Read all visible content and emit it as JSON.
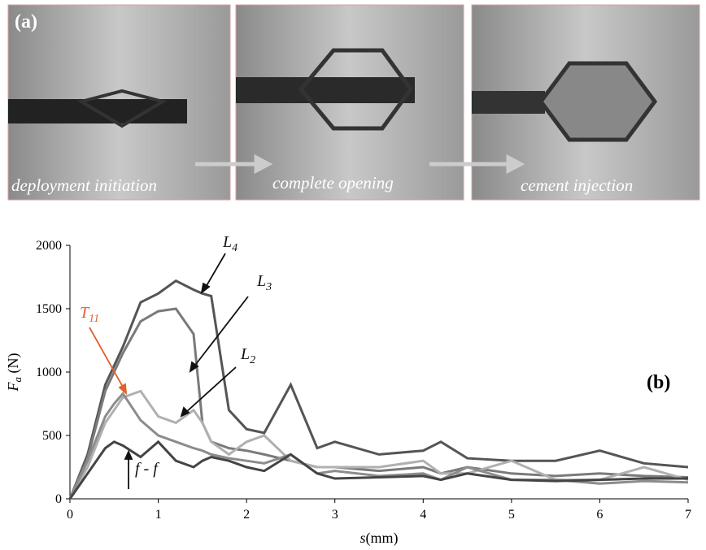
{
  "panel_a": {
    "label": "(a)",
    "captions": [
      "deployment initiation",
      "complete opening",
      "cement injection"
    ]
  },
  "chart_data": {
    "type": "line",
    "panel_label": "(b)",
    "xlabel": {
      "text": "s",
      "unit": "(mm)"
    },
    "ylabel": {
      "text": "F",
      "sub": "a",
      "unit": " (N)"
    },
    "x": [
      0,
      0.2,
      0.4,
      0.5,
      0.6,
      0.8,
      1.0,
      1.2,
      1.4,
      1.5,
      1.6,
      1.8,
      2.0,
      2.2,
      2.5,
      2.8,
      3.0,
      3.5,
      4.0,
      4.2,
      4.5,
      5.0,
      5.5,
      6.0,
      6.5,
      7.0
    ],
    "series": [
      {
        "color": "#555555",
        "values": [
          0,
          350,
          900,
          1050,
          1200,
          1550,
          1620,
          1720,
          1650,
          1620,
          1600,
          700,
          550,
          520,
          900,
          400,
          450,
          350,
          380,
          450,
          320,
          300,
          300,
          380,
          280,
          250
        ]
      },
      {
        "color": "#7a7a7a",
        "values": [
          0,
          320,
          850,
          1000,
          1150,
          1400,
          1480,
          1500,
          1300,
          600,
          450,
          400,
          380,
          350,
          300,
          250,
          250,
          220,
          250,
          200,
          250,
          200,
          180,
          200,
          180,
          170
        ]
      },
      {
        "color": "#b0b0b0",
        "values": [
          0,
          250,
          600,
          700,
          800,
          850,
          650,
          600,
          700,
          600,
          450,
          350,
          450,
          500,
          300,
          250,
          250,
          250,
          300,
          200,
          200,
          300,
          150,
          150,
          250,
          150
        ]
      },
      {
        "color": "#8c8c8c",
        "values": [
          0,
          300,
          650,
          750,
          830,
          620,
          500,
          450,
          400,
          380,
          350,
          320,
          300,
          280,
          350,
          200,
          220,
          180,
          200,
          150,
          250,
          150,
          150,
          120,
          140,
          130
        ]
      },
      {
        "color": "#444444",
        "values": [
          0,
          200,
          400,
          450,
          420,
          330,
          450,
          300,
          250,
          300,
          330,
          300,
          250,
          220,
          350,
          200,
          160,
          170,
          180,
          150,
          200,
          150,
          140,
          150,
          160,
          160
        ]
      }
    ],
    "annotations": [
      {
        "text": "L",
        "sub": "4"
      },
      {
        "text": "L",
        "sub": "3"
      },
      {
        "text": "L",
        "sub": "2"
      },
      {
        "text": "T",
        "sub": "11",
        "color": "#e0622a"
      },
      {
        "text": "f - f"
      }
    ],
    "xlim": [
      0,
      7
    ],
    "xticks": [
      0,
      1,
      2,
      3,
      4,
      5,
      6,
      7
    ],
    "ylim": [
      0,
      2000
    ],
    "yticks": [
      0,
      500,
      1000,
      1500,
      2000
    ]
  }
}
